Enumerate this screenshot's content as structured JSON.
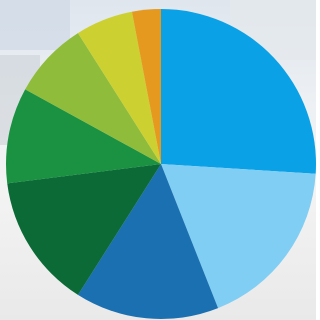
{
  "chart_data": {
    "type": "pie",
    "values": [
      26,
      18,
      15,
      14,
      10,
      8,
      6,
      3
    ],
    "colors": [
      "#0aa1e6",
      "#80cef3",
      "#1a70b1",
      "#0b6a36",
      "#1b9142",
      "#8fbc3a",
      "#ccd131",
      "#e59a1f"
    ]
  }
}
